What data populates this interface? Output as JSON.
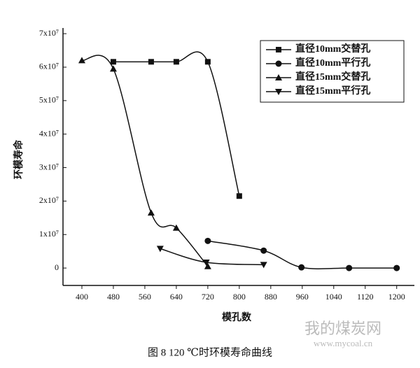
{
  "chart_data": {
    "type": "line",
    "caption": "图 8    120 ℃时环模寿命曲线",
    "x_label": "模孔数",
    "y_label": "环模寿命",
    "watermark": "我的煤炭网",
    "watermark_url": "www.mycoal.cn",
    "xlim": [
      352,
      1245
    ],
    "ylim": [
      -5200000,
      71700000
    ],
    "xticks": [
      400,
      480,
      560,
      640,
      720,
      800,
      880,
      960,
      1040,
      1120,
      1200
    ],
    "yticks": [
      0,
      {
        "value": 10000000,
        "label": "1x10⁷"
      },
      {
        "value": 20000000,
        "label": "2x10⁷"
      },
      {
        "value": 30000000,
        "label": "3x10⁷"
      },
      {
        "value": 40000000,
        "label": "4x10⁷"
      },
      {
        "value": 50000000,
        "label": "5x10⁷"
      },
      {
        "value": 60000000,
        "label": "6x10⁷"
      },
      {
        "value": 70000000,
        "label": "7x10⁷"
      }
    ],
    "legend": "upper right",
    "series": [
      {
        "name": "直径10mm交替孔",
        "color": "#111111",
        "marker": "square",
        "x": [
          480,
          576,
          640,
          720,
          800
        ],
        "values": [
          61600000,
          61600000,
          61600000,
          61600000,
          21500000
        ]
      },
      {
        "name": "直径10mm平行孔",
        "color": "#111111",
        "marker": "circle",
        "x": [
          720,
          862,
          958,
          1079,
          1200
        ],
        "values": [
          8100000,
          5200000,
          200000,
          0,
          0
        ]
      },
      {
        "name": "直径15mm交替孔",
        "color": "#111111",
        "marker": "triangle-up",
        "x": [
          400,
          480,
          576,
          640,
          720
        ],
        "values": [
          62000000,
          59500000,
          16500000,
          12000000,
          500000
        ]
      },
      {
        "name": "直径15mm平行孔",
        "color": "#111111",
        "marker": "triangle-down",
        "x": [
          599,
          716,
          862
        ],
        "values": [
          5800000,
          1700000,
          1000000
        ]
      }
    ]
  }
}
